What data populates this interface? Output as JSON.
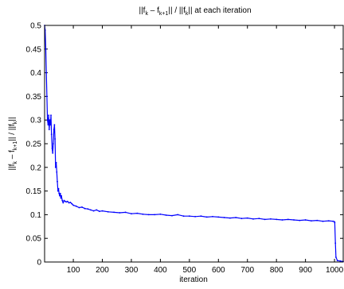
{
  "chart_data": {
    "type": "line",
    "title": "||f_k – f_k+1|| / ||f_k||  at each iteration",
    "title_parts": {
      "t1": "||f",
      "t1_sub": "k",
      "t2": " – f",
      "t2_sub": "k+1",
      "t3": "|| / ||f",
      "t3_sub": "k",
      "t4": "||  at each iteration"
    },
    "ylabel": "||f_k – f_k+1|| / ||f_k||",
    "ylabel_parts": {
      "t1": "||f",
      "t1_sub": "k",
      "t2": " – f",
      "t2_sub": "k+1",
      "t3": "|| / ||f",
      "t3_sub": "k",
      "t4": "||"
    },
    "xlabel": "iteration",
    "xlim": [
      1,
      1030
    ],
    "ylim": [
      0,
      0.5
    ],
    "xticks": [
      100,
      200,
      300,
      400,
      500,
      600,
      700,
      800,
      900,
      1000
    ],
    "yticks": [
      0,
      0.05,
      0.1,
      0.15,
      0.2,
      0.25,
      0.3,
      0.35,
      0.4,
      0.45,
      0.5
    ],
    "ytick_labels": [
      "0",
      "0.05",
      "0.1",
      "0.15",
      "0.2",
      "0.25",
      "0.3",
      "0.35",
      "0.4",
      "0.45",
      "0.5"
    ],
    "grid": false,
    "color": "#0000ff",
    "series": [
      {
        "x": [
          1,
          3,
          5,
          7,
          9,
          11,
          13,
          15,
          17,
          19,
          21,
          23,
          25,
          27,
          29,
          31,
          33,
          35,
          37,
          39,
          41,
          43,
          45,
          47,
          49,
          51,
          53,
          55,
          57,
          59,
          62,
          65,
          68,
          72,
          76,
          80,
          85,
          90,
          95,
          100,
          110,
          120,
          130,
          140,
          150,
          160,
          170,
          180,
          190,
          200,
          220,
          240,
          260,
          280,
          300,
          320,
          340,
          360,
          380,
          400,
          420,
          440,
          460,
          480,
          500,
          520,
          540,
          560,
          580,
          600,
          620,
          640,
          660,
          680,
          700,
          720,
          740,
          760,
          780,
          800,
          820,
          840,
          860,
          880,
          900,
          920,
          940,
          960,
          980,
          995,
          1000,
          1001,
          1003,
          1005,
          1010,
          1020,
          1030
        ],
        "y": [
          0.5,
          0.49,
          0.45,
          0.4,
          0.35,
          0.3,
          0.29,
          0.31,
          0.28,
          0.3,
          0.29,
          0.31,
          0.27,
          0.24,
          0.23,
          0.25,
          0.28,
          0.29,
          0.26,
          0.2,
          0.21,
          0.19,
          0.17,
          0.15,
          0.155,
          0.145,
          0.14,
          0.145,
          0.135,
          0.14,
          0.13,
          0.125,
          0.13,
          0.128,
          0.127,
          0.128,
          0.125,
          0.126,
          0.123,
          0.12,
          0.118,
          0.115,
          0.116,
          0.113,
          0.112,
          0.11,
          0.108,
          0.11,
          0.107,
          0.108,
          0.106,
          0.105,
          0.104,
          0.105,
          0.102,
          0.103,
          0.101,
          0.1,
          0.1,
          0.101,
          0.099,
          0.098,
          0.1,
          0.097,
          0.097,
          0.096,
          0.097,
          0.095,
          0.096,
          0.095,
          0.094,
          0.093,
          0.094,
          0.092,
          0.093,
          0.091,
          0.092,
          0.09,
          0.091,
          0.09,
          0.089,
          0.09,
          0.089,
          0.088,
          0.089,
          0.087,
          0.088,
          0.086,
          0.087,
          0.086,
          0.085,
          0.083,
          0.04,
          0.01,
          0.003,
          0.002,
          0.001
        ]
      }
    ]
  }
}
